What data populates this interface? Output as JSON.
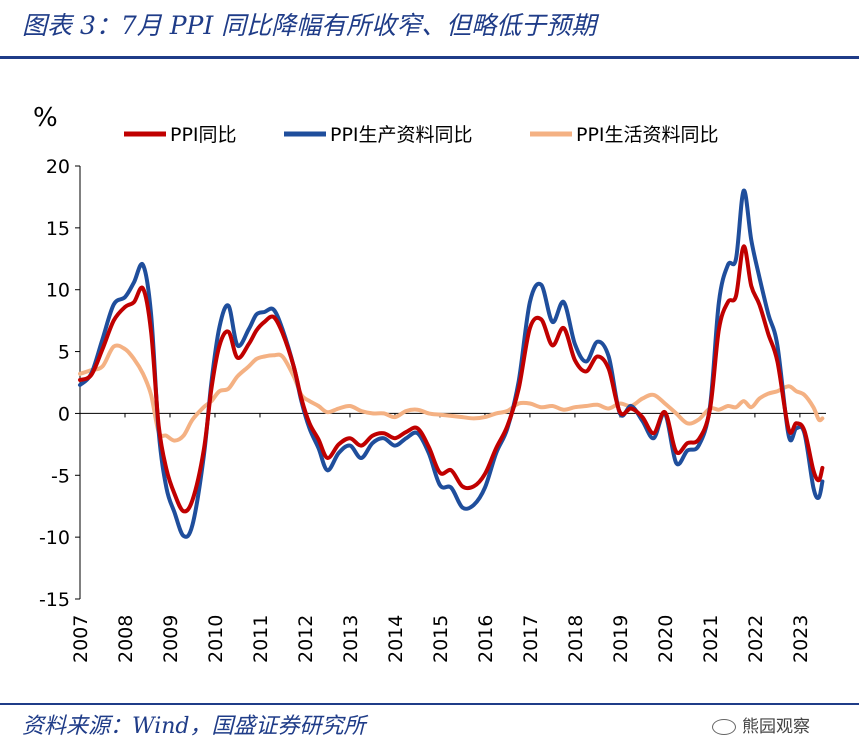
{
  "page": {
    "title": "图表 3：7月 PPI 同比降幅有所收窄、但略低于预期",
    "source": "资料来源：Wind，国盛证券研究所",
    "watermark": "熊园观察"
  },
  "chart_data": {
    "type": "line",
    "ylabel": "%",
    "ylim": [
      -15,
      20
    ],
    "yticks": [
      20,
      15,
      10,
      5,
      0,
      -5,
      -10,
      -15
    ],
    "xlim": [
      2007.0,
      2023.58
    ],
    "xticks": [
      "2007",
      "2008",
      "2009",
      "2010",
      "2011",
      "2012",
      "2013",
      "2014",
      "2015",
      "2016",
      "2017",
      "2018",
      "2019",
      "2020",
      "2021",
      "2022",
      "2023"
    ],
    "grid": false,
    "legend": "top",
    "series": [
      {
        "name": "PPI同比",
        "color": "#c00000",
        "x": [
          2007.0,
          2007.25,
          2007.5,
          2007.75,
          2008.0,
          2008.2,
          2008.4,
          2008.58,
          2008.75,
          2008.92,
          2009.1,
          2009.3,
          2009.5,
          2009.75,
          2009.92,
          2010.1,
          2010.3,
          2010.5,
          2010.75,
          2010.92,
          2011.1,
          2011.3,
          2011.5,
          2011.75,
          2011.92,
          2012.1,
          2012.3,
          2012.5,
          2012.75,
          2013.0,
          2013.25,
          2013.5,
          2013.75,
          2014.0,
          2014.25,
          2014.5,
          2014.75,
          2015.0,
          2015.25,
          2015.5,
          2015.75,
          2016.0,
          2016.25,
          2016.5,
          2016.75,
          2017.0,
          2017.25,
          2017.5,
          2017.75,
          2018.0,
          2018.25,
          2018.5,
          2018.75,
          2019.0,
          2019.25,
          2019.5,
          2019.75,
          2020.0,
          2020.25,
          2020.5,
          2020.75,
          2021.0,
          2021.2,
          2021.4,
          2021.58,
          2021.75,
          2021.92,
          2022.1,
          2022.3,
          2022.5,
          2022.75,
          2022.92,
          2023.1,
          2023.3,
          2023.42,
          2023.5
        ],
        "values": [
          2.7,
          3.1,
          5.2,
          7.5,
          8.6,
          9.0,
          10.1,
          6.6,
          -1.0,
          -4.5,
          -6.5,
          -7.9,
          -7.0,
          -3.0,
          2.0,
          5.5,
          6.6,
          4.5,
          5.6,
          6.7,
          7.4,
          7.8,
          6.5,
          3.8,
          1.2,
          -0.8,
          -2.1,
          -3.6,
          -2.5,
          -2.0,
          -2.6,
          -1.8,
          -1.6,
          -2.0,
          -1.5,
          -1.2,
          -2.7,
          -4.8,
          -4.6,
          -5.9,
          -5.9,
          -4.9,
          -2.8,
          -1.0,
          2.0,
          6.9,
          7.6,
          5.5,
          6.9,
          4.3,
          3.4,
          4.6,
          3.6,
          0.1,
          0.4,
          -0.3,
          -1.6,
          0.1,
          -3.1,
          -2.4,
          -2.1,
          0.3,
          6.8,
          9.0,
          9.5,
          13.5,
          10.3,
          8.8,
          6.4,
          4.2,
          -1.3,
          -0.8,
          -1.4,
          -4.6,
          -5.4,
          -4.4
        ]
      },
      {
        "name": "PPI生产资料同比",
        "color": "#1f4e9c",
        "x": [
          2007.0,
          2007.25,
          2007.5,
          2007.75,
          2008.0,
          2008.2,
          2008.4,
          2008.58,
          2008.75,
          2008.92,
          2009.1,
          2009.3,
          2009.5,
          2009.75,
          2009.92,
          2010.1,
          2010.3,
          2010.5,
          2010.75,
          2010.92,
          2011.1,
          2011.3,
          2011.5,
          2011.75,
          2011.92,
          2012.1,
          2012.3,
          2012.5,
          2012.75,
          2013.0,
          2013.25,
          2013.5,
          2013.75,
          2014.0,
          2014.25,
          2014.5,
          2014.75,
          2015.0,
          2015.25,
          2015.5,
          2015.75,
          2016.0,
          2016.25,
          2016.5,
          2016.75,
          2017.0,
          2017.25,
          2017.5,
          2017.75,
          2018.0,
          2018.25,
          2018.5,
          2018.75,
          2019.0,
          2019.25,
          2019.5,
          2019.75,
          2020.0,
          2020.25,
          2020.5,
          2020.75,
          2021.0,
          2021.2,
          2021.4,
          2021.58,
          2021.75,
          2021.92,
          2022.1,
          2022.3,
          2022.5,
          2022.75,
          2022.92,
          2023.1,
          2023.3,
          2023.42,
          2023.5
        ],
        "values": [
          2.3,
          3.2,
          6.0,
          8.8,
          9.4,
          10.6,
          12.0,
          8.0,
          -1.5,
          -6.0,
          -8.0,
          -9.9,
          -9.0,
          -3.5,
          2.5,
          7.0,
          8.7,
          5.5,
          6.8,
          8.0,
          8.2,
          8.4,
          6.8,
          3.8,
          1.0,
          -1.2,
          -2.8,
          -4.6,
          -3.2,
          -2.6,
          -3.6,
          -2.4,
          -2.0,
          -2.6,
          -2.0,
          -1.6,
          -3.2,
          -5.8,
          -6.0,
          -7.6,
          -7.4,
          -6.0,
          -3.2,
          -1.2,
          2.6,
          9.0,
          10.4,
          7.4,
          9.0,
          5.6,
          4.2,
          5.8,
          4.6,
          0.0,
          0.6,
          -0.6,
          -2.0,
          0.0,
          -4.0,
          -3.0,
          -2.6,
          0.5,
          9.0,
          12.0,
          12.5,
          18.0,
          14.0,
          11.0,
          8.0,
          5.5,
          -1.8,
          -1.2,
          -1.6,
          -6.0,
          -6.8,
          -5.5
        ]
      },
      {
        "name": "PPI生活资料同比",
        "color": "#f4b183",
        "x": [
          2007.0,
          2007.25,
          2007.5,
          2007.75,
          2008.0,
          2008.2,
          2008.4,
          2008.58,
          2008.75,
          2008.92,
          2009.1,
          2009.3,
          2009.5,
          2009.75,
          2009.92,
          2010.1,
          2010.3,
          2010.5,
          2010.75,
          2010.92,
          2011.1,
          2011.3,
          2011.5,
          2011.75,
          2011.92,
          2012.1,
          2012.3,
          2012.5,
          2012.75,
          2013.0,
          2013.25,
          2013.5,
          2013.75,
          2014.0,
          2014.25,
          2014.5,
          2014.75,
          2015.0,
          2015.25,
          2015.5,
          2015.75,
          2016.0,
          2016.25,
          2016.5,
          2016.75,
          2017.0,
          2017.25,
          2017.5,
          2017.75,
          2018.0,
          2018.25,
          2018.5,
          2018.75,
          2019.0,
          2019.25,
          2019.5,
          2019.75,
          2020.0,
          2020.25,
          2020.5,
          2020.75,
          2021.0,
          2021.2,
          2021.4,
          2021.58,
          2021.75,
          2021.92,
          2022.1,
          2022.3,
          2022.5,
          2022.75,
          2022.92,
          2023.1,
          2023.3,
          2023.42,
          2023.5
        ],
        "values": [
          3.2,
          3.5,
          3.8,
          5.4,
          5.2,
          4.4,
          3.2,
          1.5,
          -1.5,
          -1.8,
          -2.2,
          -1.8,
          -0.5,
          0.5,
          1.0,
          1.8,
          2.0,
          3.0,
          3.8,
          4.4,
          4.6,
          4.7,
          4.6,
          3.0,
          1.5,
          1.0,
          0.6,
          0.1,
          0.4,
          0.6,
          0.2,
          0.0,
          0.0,
          -0.3,
          0.2,
          0.3,
          0.0,
          -0.1,
          -0.2,
          -0.3,
          -0.4,
          -0.3,
          0.0,
          0.2,
          0.8,
          0.8,
          0.5,
          0.6,
          0.3,
          0.5,
          0.6,
          0.7,
          0.4,
          0.8,
          0.6,
          1.2,
          1.5,
          0.8,
          0.0,
          -0.8,
          -0.5,
          0.4,
          0.3,
          0.6,
          0.5,
          1.0,
          0.5,
          1.2,
          1.6,
          1.8,
          2.2,
          1.8,
          1.5,
          0.5,
          -0.5,
          -0.4
        ]
      }
    ]
  }
}
